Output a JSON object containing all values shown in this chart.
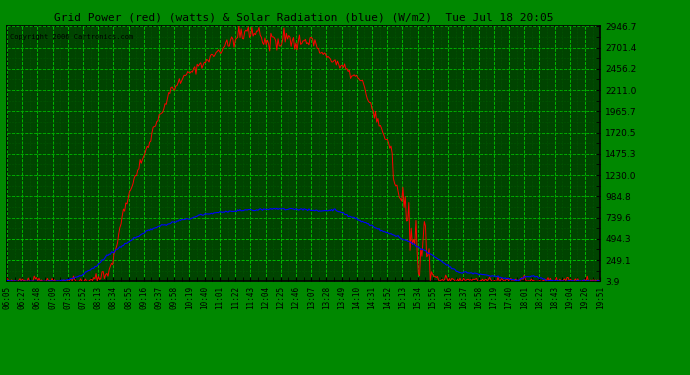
{
  "title": "Grid Power (red) (watts) & Solar Radiation (blue) (W/m2)  Tue Jul 18 20:05",
  "copyright": "Copyright 2006 Cartronics.com",
  "bg_color": "#000000",
  "plot_bg_color": "#004400",
  "grid_major_color": "#00cc00",
  "grid_minor_color": "#006600",
  "y_ticks": [
    3.9,
    249.1,
    494.3,
    739.6,
    984.8,
    1230.0,
    1475.3,
    1720.5,
    1965.7,
    2211.0,
    2456.2,
    2701.4,
    2946.7
  ],
  "y_min": 3.9,
  "y_max": 2946.7,
  "x_labels": [
    "06:05",
    "06:27",
    "06:48",
    "07:09",
    "07:30",
    "07:52",
    "08:13",
    "08:34",
    "08:55",
    "09:16",
    "09:37",
    "09:58",
    "10:19",
    "10:40",
    "11:01",
    "11:22",
    "11:43",
    "12:04",
    "12:25",
    "12:46",
    "13:07",
    "13:28",
    "13:49",
    "14:10",
    "14:31",
    "14:52",
    "15:13",
    "15:34",
    "15:55",
    "16:16",
    "16:37",
    "16:58",
    "17:19",
    "17:40",
    "18:01",
    "18:22",
    "18:43",
    "19:04",
    "19:26",
    "19:51"
  ],
  "red_color": "#ff0000",
  "blue_color": "#0000ff",
  "title_color": "#000000",
  "label_color": "#000000",
  "border_color": "#000000",
  "outer_bg": "#008800"
}
